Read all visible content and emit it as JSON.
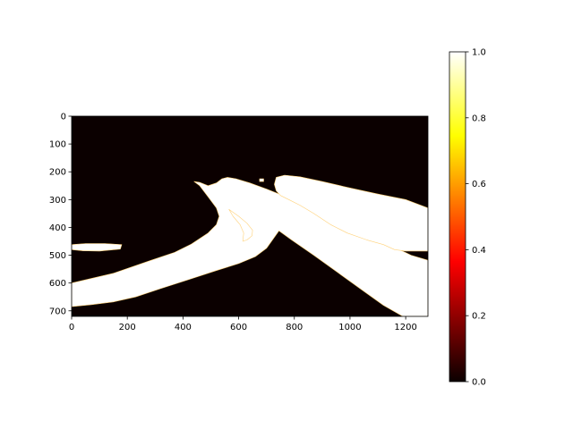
{
  "chart_data": {
    "type": "heatmap",
    "title": "",
    "xlabel": "",
    "ylabel": "",
    "image_width": 1280,
    "image_height": 720,
    "xlim": [
      0,
      1280
    ],
    "ylim": [
      720,
      0
    ],
    "x_ticks": [
      0,
      200,
      400,
      600,
      800,
      1000,
      1200
    ],
    "y_ticks": [
      0,
      100,
      200,
      300,
      400,
      500,
      600,
      700
    ],
    "colormap": "hot",
    "colorbar": {
      "range": [
        0.0,
        1.0
      ],
      "ticks": [
        "0.0",
        "0.2",
        "0.4",
        "0.6",
        "0.8",
        "1.0"
      ]
    },
    "values_present": [
      0,
      1
    ],
    "background_value": 0,
    "regions_value_1": [
      {
        "name": "lower-left-band",
        "polygon": [
          [
            0,
            600
          ],
          [
            150,
            565
          ],
          [
            280,
            520
          ],
          [
            370,
            490
          ],
          [
            430,
            460
          ],
          [
            490,
            420
          ],
          [
            520,
            390
          ],
          [
            530,
            360
          ],
          [
            520,
            330
          ],
          [
            490,
            290
          ],
          [
            460,
            250
          ],
          [
            440,
            235
          ],
          [
            460,
            238
          ],
          [
            490,
            250
          ],
          [
            520,
            240
          ],
          [
            540,
            225
          ],
          [
            560,
            220
          ],
          [
            590,
            225
          ],
          [
            640,
            240
          ],
          [
            700,
            262
          ],
          [
            770,
            290
          ],
          [
            860,
            330
          ],
          [
            950,
            372
          ],
          [
            1050,
            420
          ],
          [
            1140,
            462
          ],
          [
            1220,
            500
          ],
          [
            1280,
            518
          ],
          [
            1280,
            720
          ],
          [
            1190,
            720
          ],
          [
            1120,
            680
          ],
          [
            1050,
            630
          ],
          [
            960,
            565
          ],
          [
            870,
            500
          ],
          [
            790,
            445
          ],
          [
            745,
            412
          ],
          [
            725,
            440
          ],
          [
            700,
            475
          ],
          [
            660,
            505
          ],
          [
            600,
            530
          ],
          [
            520,
            555
          ],
          [
            420,
            588
          ],
          [
            320,
            620
          ],
          [
            230,
            650
          ],
          [
            150,
            668
          ],
          [
            70,
            678
          ],
          [
            0,
            685
          ]
        ]
      },
      {
        "name": "inner-arc",
        "polygon": [
          [
            565,
            335
          ],
          [
            600,
            360
          ],
          [
            630,
            385
          ],
          [
            650,
            410
          ],
          [
            648,
            430
          ],
          [
            630,
            445
          ],
          [
            615,
            450
          ],
          [
            618,
            420
          ],
          [
            605,
            390
          ],
          [
            580,
            360
          ]
        ]
      },
      {
        "name": "upper-right-band",
        "polygon": [
          [
            735,
            220
          ],
          [
            765,
            212
          ],
          [
            820,
            218
          ],
          [
            900,
            235
          ],
          [
            1000,
            258
          ],
          [
            1100,
            280
          ],
          [
            1200,
            300
          ],
          [
            1280,
            330
          ],
          [
            1280,
            485
          ],
          [
            1200,
            485
          ],
          [
            1160,
            480
          ],
          [
            1120,
            462
          ],
          [
            1060,
            445
          ],
          [
            990,
            420
          ],
          [
            930,
            390
          ],
          [
            870,
            350
          ],
          [
            820,
            320
          ],
          [
            780,
            300
          ],
          [
            750,
            285
          ],
          [
            735,
            268
          ],
          [
            728,
            245
          ]
        ]
      },
      {
        "name": "left-blob",
        "polygon": [
          [
            0,
            462
          ],
          [
            50,
            458
          ],
          [
            120,
            458
          ],
          [
            180,
            462
          ],
          [
            175,
            478
          ],
          [
            100,
            485
          ],
          [
            40,
            484
          ],
          [
            0,
            480
          ]
        ]
      },
      {
        "name": "small-dot",
        "polygon": [
          [
            675,
            225
          ],
          [
            690,
            225
          ],
          [
            690,
            235
          ],
          [
            675,
            235
          ]
        ]
      }
    ]
  }
}
